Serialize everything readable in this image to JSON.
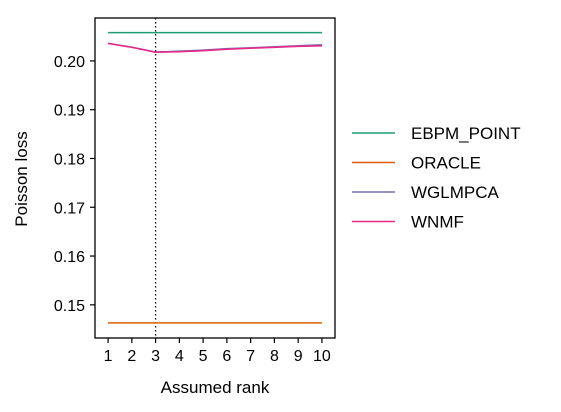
{
  "chart_data": {
    "type": "line",
    "title": "",
    "xlabel": "Assumed rank",
    "ylabel": "Poisson loss",
    "x": [
      1,
      2,
      3,
      4,
      5,
      6,
      7,
      8,
      9,
      10
    ],
    "xticks": [
      "1",
      "2",
      "3",
      "4",
      "5",
      "6",
      "7",
      "8",
      "9",
      "10"
    ],
    "yticks": [
      "0.15",
      "0.16",
      "0.17",
      "0.18",
      "0.19",
      "0.20"
    ],
    "ylim": [
      0.1432,
      0.2088
    ],
    "xlim": [
      0.45,
      10.55
    ],
    "vline_x": 3,
    "grid": false,
    "legend_position": "right",
    "series": [
      {
        "name": "EBPM_POINT",
        "color": "#1b9e77",
        "values": [
          0.2058,
          0.2058,
          0.2058,
          0.2058,
          0.2058,
          0.2058,
          0.2058,
          0.2058,
          0.2058,
          0.2058
        ]
      },
      {
        "name": "ORACLE",
        "color": "#d95f02",
        "values": [
          0.1463,
          0.1463,
          0.1463,
          0.1463,
          0.1463,
          0.1463,
          0.1463,
          0.1463,
          0.1463,
          0.1463
        ]
      },
      {
        "name": "WGLMPCA",
        "color": "#7570b3",
        "values": [
          0.2036,
          0.2028,
          0.2018,
          0.202,
          0.2022,
          0.2025,
          0.2027,
          0.2029,
          0.2031,
          0.2033
        ]
      },
      {
        "name": "WNMF",
        "color": "#e7298a",
        "values": [
          0.2036,
          0.2028,
          0.2018,
          0.2019,
          0.2021,
          0.2024,
          0.2026,
          0.2028,
          0.203,
          0.2031
        ]
      }
    ]
  }
}
